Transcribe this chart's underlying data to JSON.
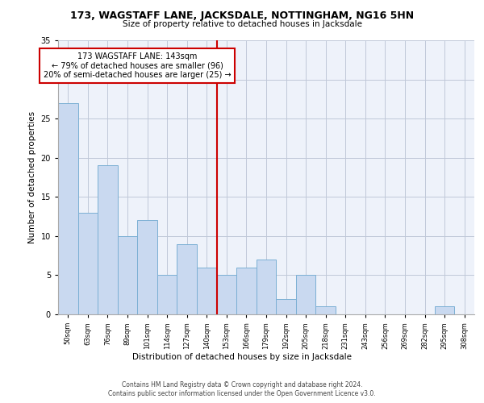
{
  "title": "173, WAGSTAFF LANE, JACKSDALE, NOTTINGHAM, NG16 5HN",
  "subtitle": "Size of property relative to detached houses in Jacksdale",
  "xlabel": "Distribution of detached houses by size in Jacksdale",
  "ylabel": "Number of detached properties",
  "bar_labels": [
    "50sqm",
    "63sqm",
    "76sqm",
    "89sqm",
    "101sqm",
    "114sqm",
    "127sqm",
    "140sqm",
    "153sqm",
    "166sqm",
    "179sqm",
    "192sqm",
    "205sqm",
    "218sqm",
    "231sqm",
    "243sqm",
    "256sqm",
    "269sqm",
    "282sqm",
    "295sqm",
    "308sqm"
  ],
  "bar_values": [
    27,
    13,
    19,
    10,
    12,
    5,
    9,
    6,
    5,
    6,
    7,
    2,
    5,
    1,
    0,
    0,
    0,
    0,
    0,
    1,
    0
  ],
  "bar_color": "#c9d9f0",
  "bar_edgecolor": "#7bafd4",
  "property_label": "173 WAGSTAFF LANE: 143sqm",
  "annotation_line1": "← 79% of detached houses are smaller (96)",
  "annotation_line2": "20% of semi-detached houses are larger (25) →",
  "vline_x": 7.5,
  "vline_color": "#cc0000",
  "annotation_box_color": "#ffffff",
  "annotation_box_edgecolor": "#cc0000",
  "ylim": [
    0,
    35
  ],
  "yticks": [
    0,
    5,
    10,
    15,
    20,
    25,
    30,
    35
  ],
  "background_color": "#eef2fa",
  "footer1": "Contains HM Land Registry data © Crown copyright and database right 2024.",
  "footer2": "Contains public sector information licensed under the Open Government Licence v3.0."
}
